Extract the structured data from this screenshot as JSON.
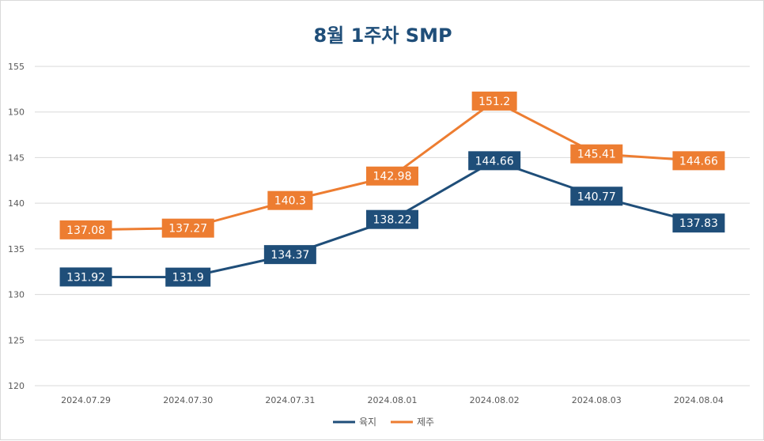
{
  "chart_data": {
    "type": "line",
    "title": "8월 1주차 SMP",
    "categories": [
      "2024.07.29",
      "2024.07.30",
      "2024.07.31",
      "2024.08.01",
      "2024.08.02",
      "2024.08.03",
      "2024.08.04"
    ],
    "series": [
      {
        "name": "육지",
        "color": "#1f4e79",
        "values": [
          131.92,
          131.9,
          134.37,
          138.22,
          144.66,
          140.77,
          137.83
        ]
      },
      {
        "name": "제주",
        "color": "#ed7d31",
        "values": [
          137.08,
          137.27,
          140.3,
          142.98,
          151.2,
          145.41,
          144.66
        ]
      }
    ],
    "ylim": [
      120,
      155
    ],
    "yticks": [
      120,
      125,
      130,
      135,
      140,
      145,
      150,
      155
    ],
    "grid": true,
    "legend": "bottom",
    "data_labels": true
  }
}
